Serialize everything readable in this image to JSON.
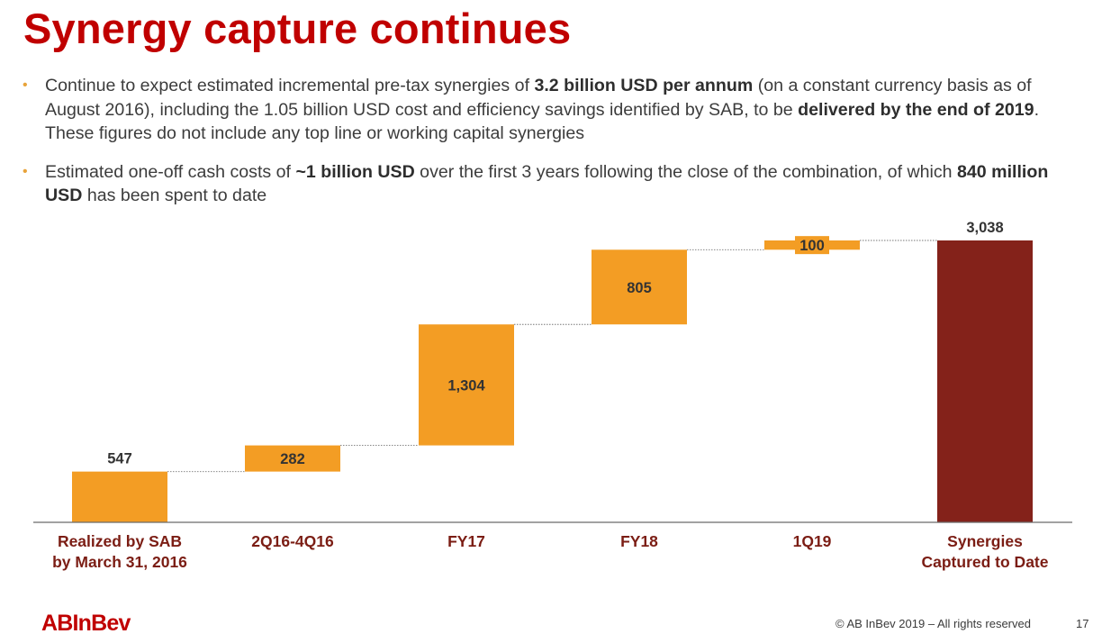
{
  "slide": {
    "title": "Synergy capture continues",
    "bullets": [
      {
        "parts": [
          {
            "text": "Continue to expect estimated incremental pre-tax synergies of ",
            "bold": false
          },
          {
            "text": "3.2 billion USD per annum",
            "bold": true
          },
          {
            "text": " (on a constant currency basis as of August 2016), including the 1.05 billion USD cost and efficiency savings identified by SAB, to be ",
            "bold": false
          },
          {
            "text": "delivered by the end of 2019",
            "bold": true
          },
          {
            "text": ". These figures do not include any top line or working capital synergies",
            "bold": false
          }
        ]
      },
      {
        "parts": [
          {
            "text": "Estimated one-off cash costs of ",
            "bold": false
          },
          {
            "text": "~1 billion USD",
            "bold": true
          },
          {
            "text": " over the first 3 years following the close of the combination, of which ",
            "bold": false
          },
          {
            "text": "840 million USD",
            "bold": true
          },
          {
            "text": " has been spent to date",
            "bold": false
          }
        ]
      }
    ],
    "bullet_glyph": "•"
  },
  "chart_data": {
    "type": "bar",
    "subtype": "waterfall",
    "categories": [
      "Realized by SAB\nby March 31, 2016",
      "2Q16-4Q16",
      "FY17",
      "FY18",
      "1Q19",
      "Synergies\nCaptured to Date"
    ],
    "values": [
      547,
      282,
      1304,
      805,
      100,
      3038
    ],
    "labels": [
      "547",
      "282",
      "1,304",
      "805",
      "100",
      "3,038"
    ],
    "bar_kinds": [
      "increment",
      "increment",
      "increment",
      "increment",
      "increment",
      "total"
    ],
    "ylim": [
      0,
      3150
    ],
    "title": "",
    "xlabel": "",
    "ylabel": "",
    "grid": false,
    "connectors": true,
    "colors": {
      "increment": "#f39d24",
      "total": "#84221a",
      "connector": "#777777",
      "axis": "#6b6b6b",
      "value_label": "#333333"
    }
  },
  "footer": {
    "logo": "ABInBev",
    "copyright": "© AB InBev 2019 – All rights reserved",
    "page_number": "17"
  },
  "colors": {
    "title": "#c00000",
    "category_label": "#7b1d14",
    "bullet_dot": "#e8a33a"
  }
}
